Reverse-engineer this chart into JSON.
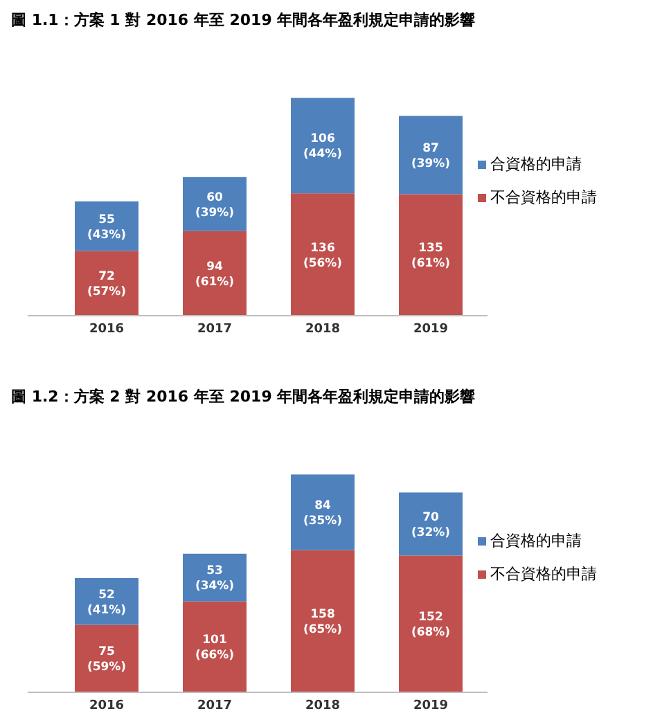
{
  "chart_data": [
    {
      "type": "bar",
      "title": "圖 1.1：方案 1 對 2016 年至 2019 年間各年盈利規定申請的影響",
      "categories": [
        "2016",
        "2017",
        "2018",
        "2019"
      ],
      "stacked": true,
      "legend": "right",
      "series": [
        {
          "name": "不合資格的申請",
          "color": "#c0504d",
          "values": [
            72,
            94,
            136,
            135
          ],
          "value_labels": [
            "72\n(57%)",
            "94\n(61%)",
            "136\n(56%)",
            "135\n(61%)"
          ]
        },
        {
          "name": "合資格的申請",
          "color": "#4f81bd",
          "values": [
            55,
            60,
            106,
            87
          ],
          "value_labels": [
            "55\n(43%)",
            "60\n(39%)",
            "106\n(44%)",
            "87\n(39%)"
          ]
        }
      ]
    },
    {
      "type": "bar",
      "title": "圖 1.2：方案 2 對 2016 年至 2019 年間各年盈利規定申請的影響",
      "categories": [
        "2016",
        "2017",
        "2018",
        "2019"
      ],
      "stacked": true,
      "legend": "right",
      "series": [
        {
          "name": "不合資格的申請",
          "color": "#c0504d",
          "values": [
            75,
            101,
            158,
            152
          ],
          "value_labels": [
            "75\n(59%)",
            "101\n(66%)",
            "158\n(65%)",
            "152\n(68%)"
          ]
        },
        {
          "name": "合資格的申請",
          "color": "#4f81bd",
          "values": [
            52,
            53,
            84,
            70
          ],
          "value_labels": [
            "52\n(41%)",
            "53\n(34%)",
            "84\n(35%)",
            "70\n(32%)"
          ]
        }
      ]
    }
  ]
}
